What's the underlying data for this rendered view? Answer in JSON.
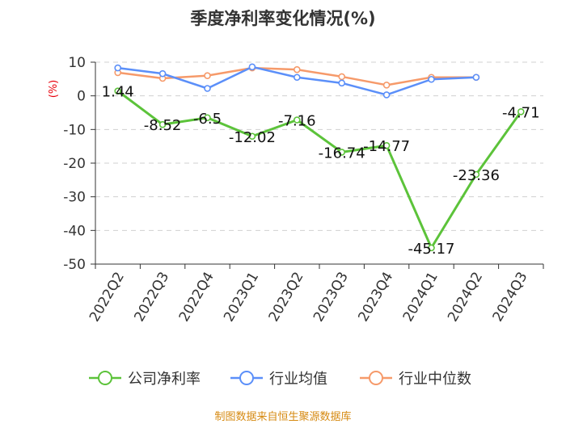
{
  "chart_data": {
    "type": "line",
    "title": "季度净利率变化情况(%)",
    "ylabel": "(%)",
    "xlabel": "",
    "categories": [
      "2022Q2",
      "2022Q3",
      "2022Q4",
      "2023Q1",
      "2023Q2",
      "2023Q3",
      "2023Q4",
      "2024Q1",
      "2024Q2",
      "2024Q3"
    ],
    "ylim": [
      -50,
      10
    ],
    "yticks": [
      10,
      0,
      -10,
      -20,
      -30,
      -40,
      -50
    ],
    "grid": true,
    "legend_position": "bottom",
    "series": [
      {
        "name": "公司净利率",
        "color": "#5cc33a",
        "values": [
          1.44,
          -8.52,
          -6.5,
          -12.02,
          -7.16,
          -16.74,
          -14.77,
          -45.17,
          -23.36,
          -4.71
        ],
        "labels": [
          "1.44",
          "-8.52",
          "-6.5",
          "-12.02",
          "-7.16",
          "-16.74",
          "-14.77",
          "-45.17",
          "-23.36",
          "-4.71"
        ]
      },
      {
        "name": "行业均值",
        "color": "#5b8ff9",
        "values": [
          8.3,
          6.6,
          2.2,
          8.6,
          5.5,
          3.8,
          0.3,
          4.9,
          5.5,
          null
        ]
      },
      {
        "name": "行业中位数",
        "color": "#f69a6a",
        "values": [
          6.9,
          5.2,
          6.0,
          8.3,
          7.8,
          5.7,
          3.2,
          5.5,
          5.5,
          null
        ]
      }
    ]
  },
  "source": "制图数据来自恒生聚源数据库"
}
